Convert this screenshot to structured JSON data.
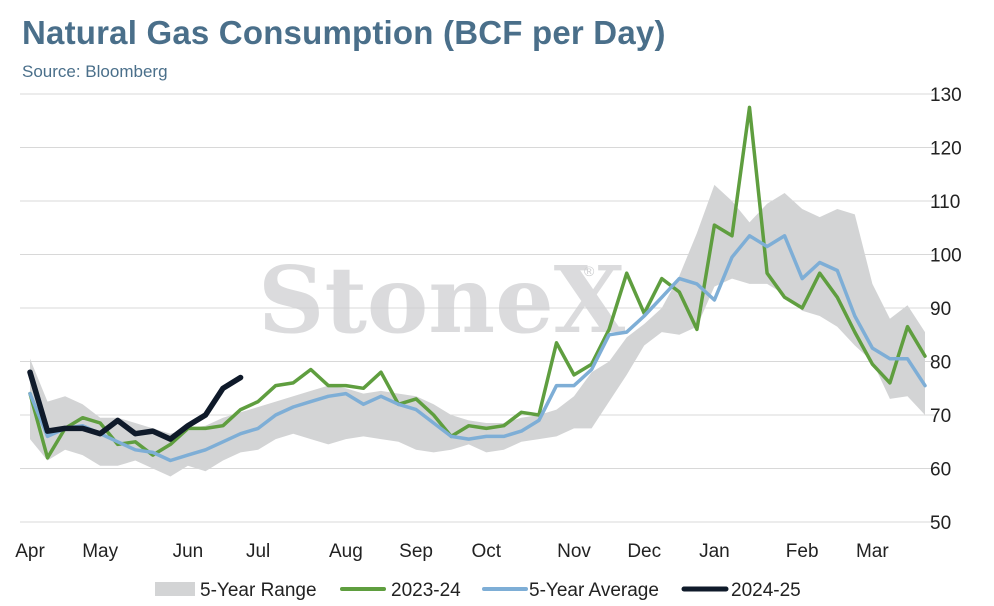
{
  "title": "Natural Gas Consumption (BCF per Day)",
  "subtitle": "Source: Bloomberg",
  "watermark": "StoneX",
  "watermark_mark": "®",
  "colors": {
    "range": "#d3d4d5",
    "s2324": "#5f9e3f",
    "avg": "#7eaed6",
    "s2425": "#0f1a2a",
    "grid": "#d8d8d8"
  },
  "chart_data": {
    "type": "line",
    "title": "Natural Gas Consumption (BCF per Day)",
    "xlabel": "",
    "ylabel": "",
    "ylim": [
      50,
      130
    ],
    "yticks": [
      50,
      60,
      70,
      80,
      90,
      100,
      110,
      120,
      130
    ],
    "y_axis_side": "right",
    "grid": "horizontal",
    "legend": "bottom",
    "x_week_range": [
      1,
      52
    ],
    "month_labels": [
      {
        "label": "Apr",
        "week": 1
      },
      {
        "label": "May",
        "week": 5
      },
      {
        "label": "Jun",
        "week": 10
      },
      {
        "label": "Jul",
        "week": 14
      },
      {
        "label": "Aug",
        "week": 19
      },
      {
        "label": "Sep",
        "week": 23
      },
      {
        "label": "Oct",
        "week": 27
      },
      {
        "label": "Nov",
        "week": 32
      },
      {
        "label": "Dec",
        "week": 36
      },
      {
        "label": "Jan",
        "week": 40
      },
      {
        "label": "Feb",
        "week": 45
      },
      {
        "label": "Mar",
        "week": 49
      }
    ],
    "band": {
      "name": "5-Year Range",
      "low": [
        65.5,
        61.5,
        63.5,
        62.5,
        60.5,
        60.5,
        61.5,
        60.0,
        58.5,
        60.5,
        59.5,
        61.5,
        63.0,
        63.5,
        65.5,
        66.5,
        65.5,
        64.5,
        65.5,
        66.0,
        65.5,
        65.0,
        63.5,
        63.0,
        63.5,
        64.5,
        63.0,
        63.5,
        65.0,
        65.5,
        66.0,
        67.5,
        67.5,
        72.5,
        77.5,
        83.0,
        85.5,
        85.0,
        86.5,
        94.0,
        95.5,
        94.5,
        94.5,
        92.5,
        89.5,
        88.5,
        86.5,
        83.0,
        80.0,
        73.0,
        73.5,
        70.0
      ],
      "high": [
        80.5,
        72.5,
        73.5,
        72.0,
        69.5,
        69.5,
        68.5,
        67.5,
        66.5,
        67.5,
        68.0,
        69.5,
        70.5,
        71.5,
        72.5,
        73.5,
        74.5,
        75.5,
        75.0,
        74.0,
        74.5,
        74.0,
        73.5,
        72.0,
        70.0,
        69.0,
        68.5,
        68.5,
        69.5,
        70.0,
        71.0,
        73.5,
        78.0,
        80.0,
        84.5,
        87.0,
        90.0,
        96.0,
        104.0,
        113.0,
        110.0,
        106.0,
        109.5,
        111.5,
        108.5,
        107.0,
        108.5,
        107.5,
        94.5,
        88.0,
        90.5,
        85.5
      ]
    },
    "series": [
      {
        "name": "2023-24",
        "x_start_week": 1,
        "values": [
          74.0,
          62.0,
          67.5,
          69.5,
          68.5,
          64.5,
          65.0,
          62.5,
          64.5,
          67.5,
          67.5,
          68.0,
          71.0,
          72.5,
          75.5,
          76.0,
          78.5,
          75.5,
          75.5,
          75.0,
          78.0,
          72.0,
          73.0,
          70.0,
          66.0,
          68.0,
          67.5,
          68.0,
          70.5,
          70.0,
          83.5,
          77.5,
          79.5,
          86.0,
          96.5,
          89.0,
          95.5,
          93.0,
          86.0,
          105.5,
          103.5,
          127.5,
          96.5,
          92.0,
          90.0,
          96.5,
          92.0,
          85.5,
          79.5,
          76.0,
          86.5,
          81.0
        ]
      },
      {
        "name": "5-Year Average",
        "x_start_week": 1,
        "values": [
          74.0,
          66.0,
          67.5,
          68.0,
          66.5,
          65.0,
          63.5,
          63.0,
          61.5,
          62.5,
          63.5,
          65.0,
          66.5,
          67.5,
          70.0,
          71.5,
          72.5,
          73.5,
          74.0,
          72.0,
          73.5,
          72.0,
          71.0,
          68.5,
          66.0,
          65.5,
          66.0,
          66.0,
          67.0,
          69.0,
          75.5,
          75.5,
          78.5,
          85.0,
          85.5,
          88.5,
          92.0,
          95.5,
          94.5,
          91.5,
          99.5,
          103.5,
          101.5,
          103.5,
          95.5,
          98.5,
          97.0,
          88.5,
          82.5,
          80.5,
          80.5,
          75.5
        ]
      },
      {
        "name": "2024-25",
        "x_start_week": 1,
        "values": [
          78.0,
          67.0,
          67.5,
          67.5,
          66.5,
          69.0,
          66.5,
          67.0,
          65.5,
          68.0,
          70.0,
          75.0,
          77.0
        ]
      }
    ]
  },
  "legend": [
    {
      "label": "5-Year Range",
      "kind": "band",
      "color_key": "range"
    },
    {
      "label": "2023-24",
      "kind": "line",
      "color_key": "s2324"
    },
    {
      "label": "5-Year Average",
      "kind": "line",
      "color_key": "avg"
    },
    {
      "label": "2024-25",
      "kind": "line",
      "color_key": "s2425"
    }
  ]
}
